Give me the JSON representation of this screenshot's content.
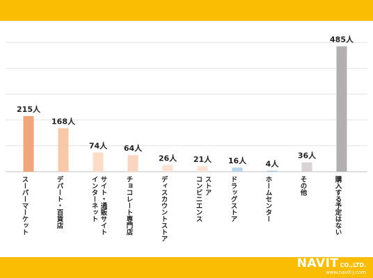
{
  "brand": {
    "name": "NAVIT",
    "suffix": "CO.,LTD.",
    "url": "www.navit-j.com",
    "band_color": "#fbbd04"
  },
  "chart_data": {
    "type": "bar",
    "categories": [
      "スーパーマーケット",
      "デパート・百貨店",
      "インターネット\nサイト・通販サイト",
      "チョコレート専門店",
      "ディスカウントストア",
      "コンビニエンス\nストア",
      "ドラッグストア",
      "ホームセンター",
      "その他",
      "購入する予定はない"
    ],
    "values": [
      215,
      168,
      74,
      64,
      26,
      21,
      16,
      4,
      36,
      485
    ],
    "data_labels": [
      "215人",
      "168人",
      "74人",
      "64人",
      "26人",
      "21人",
      "16人",
      "4人",
      "36人",
      "485人"
    ],
    "colors": [
      "#f0a57a",
      "#f7c9a8",
      "#fbdcc7",
      "#fad6c2",
      "#fbe3d4",
      "#fbe2d6",
      "#b9d5ee",
      "#aacbe6",
      "#d9d3d5",
      "#b3aeb0"
    ],
    "ylim": [
      0,
      500
    ],
    "grid": true
  }
}
